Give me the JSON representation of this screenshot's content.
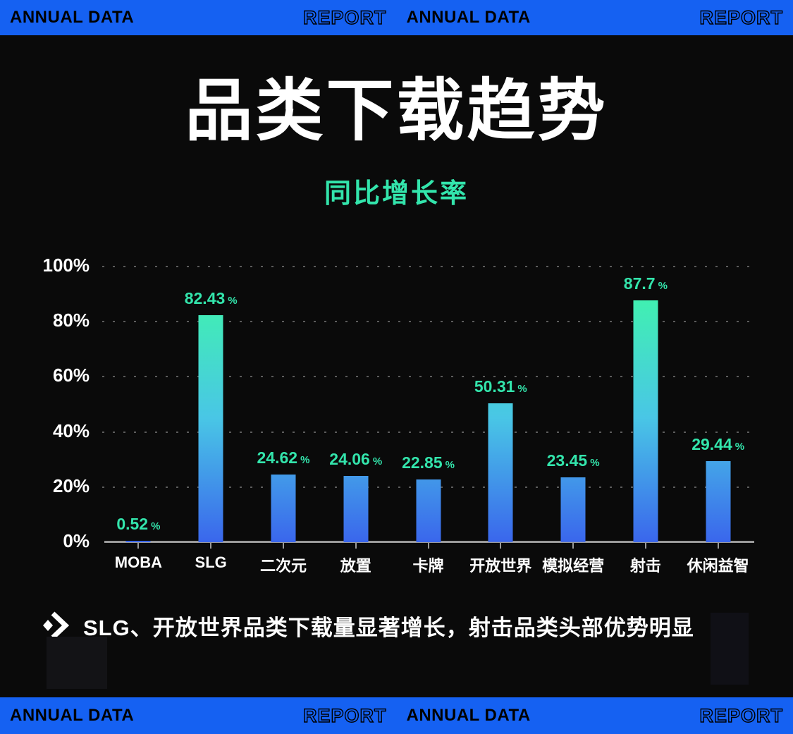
{
  "banner": {
    "brand": "ANNUAL DATA",
    "report": "REPORT"
  },
  "header": {
    "title": "品类下载趋势",
    "subtitle": "同比增长率"
  },
  "note": {
    "text": "SLG、开放世界品类下载量显著增长，射击品类头部优势明显"
  },
  "colors": {
    "banner_blue": "#1561F2",
    "mint": "#33E5AC",
    "bar_gradient_top": "#3FF7A9",
    "bar_gradient_mid": "#49C6E6",
    "bar_gradient_bottom": "#3A66EC",
    "background": "#0A0A0A",
    "grid": "#5C5C5C",
    "axis": "#9A9A9A"
  },
  "chart_data": {
    "type": "bar",
    "title": "品类下载趋势",
    "subtitle": "同比增长率",
    "categories": [
      "MOBA",
      "SLG",
      "二次元",
      "放置",
      "卡牌",
      "开放世界",
      "模拟经营",
      "射击",
      "休闲益智"
    ],
    "values": [
      0.52,
      82.43,
      24.62,
      24.06,
      22.85,
      50.31,
      23.45,
      87.7,
      29.44
    ],
    "unit": "%",
    "value_label_suffix": "%",
    "xlabel": "",
    "ylabel": "",
    "ylim": [
      0,
      100
    ],
    "yticks": [
      0,
      20,
      40,
      60,
      80,
      100
    ],
    "ytick_labels": [
      "0%",
      "20%",
      "40%",
      "60%",
      "80%",
      "100%"
    ],
    "grid": "dotted horizontal gridlines at 20/40/60/80/100, solid axis baseline at 0",
    "legend": null,
    "bar_style": "vertical bars with blue-to-mint global gradient (greener toward 100%)"
  }
}
